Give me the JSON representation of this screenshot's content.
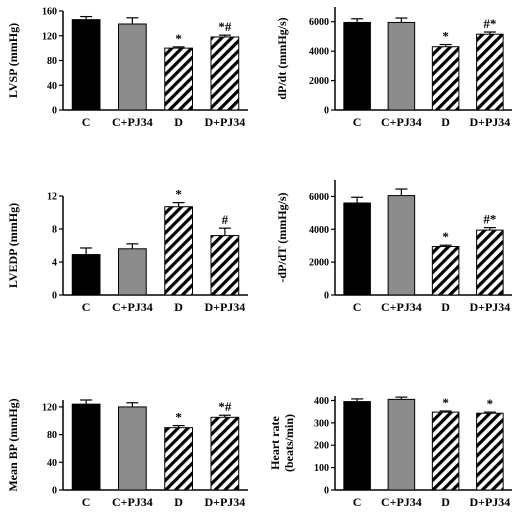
{
  "chart_data": [
    {
      "type": "bar",
      "categories": [
        "C",
        "C+PJ34",
        "D",
        "D+PJ34"
      ],
      "ylabel": "LVSP (mmHg)",
      "ylim": [
        0,
        160
      ],
      "yticks": [
        0,
        40,
        80,
        120,
        160
      ],
      "tick_labels": [
        "0",
        "40",
        "80",
        "120",
        "160"
      ],
      "values": [
        146,
        139,
        100,
        118
      ],
      "errors": [
        5,
        10,
        2,
        3
      ],
      "annotations": [
        "",
        "",
        "*",
        "*#"
      ]
    },
    {
      "type": "bar",
      "categories": [
        "C",
        "C+PJ34",
        "D",
        "D+PJ34"
      ],
      "ylabel": "dP/dt (mmHg/s)",
      "ylim": [
        0,
        7000
      ],
      "yticks": [
        0,
        2000,
        4000,
        6000
      ],
      "tick_labels": [
        "0",
        "2000",
        "4000",
        "6000"
      ],
      "values": [
        5950,
        5950,
        4300,
        5150
      ],
      "errors": [
        250,
        300,
        150,
        150
      ],
      "annotations": [
        "",
        "",
        "*",
        "#*"
      ]
    },
    {
      "type": "bar",
      "categories": [
        "C",
        "C+PJ34",
        "D",
        "D+PJ34"
      ],
      "ylabel": "LVEDP (mmHg)",
      "ylim": [
        0,
        12
      ],
      "yticks": [
        0,
        4,
        8,
        12
      ],
      "tick_labels": [
        "0",
        "4",
        "8",
        "12"
      ],
      "values": [
        4.9,
        5.6,
        10.7,
        7.2
      ],
      "errors": [
        0.8,
        0.6,
        0.5,
        0.9
      ],
      "annotations": [
        "",
        "",
        "*",
        "#"
      ]
    },
    {
      "type": "bar",
      "categories": [
        "C",
        "C+PJ34",
        "D",
        "D+PJ34"
      ],
      "ylabel": "-dP/dT (mmHg/s)",
      "ylim": [
        0,
        7000
      ],
      "yticks": [
        0,
        2000,
        4000,
        6000
      ],
      "tick_labels": [
        "0",
        "2000",
        "4000",
        "6000"
      ],
      "values": [
        5600,
        6050,
        2950,
        3950
      ],
      "errors": [
        350,
        400,
        80,
        150
      ],
      "annotations": [
        "",
        "",
        "*",
        "#*"
      ]
    },
    {
      "type": "bar",
      "categories": [
        "C",
        "C+PJ34",
        "D",
        "D+PJ34"
      ],
      "ylabel": "Mean BP (mmHg)",
      "ylim": [
        0,
        130
      ],
      "yticks": [
        0,
        40,
        80,
        120
      ],
      "tick_labels": [
        "0",
        "40",
        "80",
        "120"
      ],
      "values": [
        124,
        120,
        90,
        105
      ],
      "errors": [
        6,
        6,
        3,
        3
      ],
      "annotations": [
        "",
        "",
        "*",
        "*#"
      ]
    },
    {
      "type": "bar",
      "categories": [
        "C",
        "C+PJ34",
        "D",
        "D+PJ34"
      ],
      "ylabel": "Heart rate (beats/min)",
      "ylabel_lines": [
        "Heart rate",
        "(beats/min)"
      ],
      "ylim": [
        0,
        420
      ],
      "yticks": [
        0,
        100,
        200,
        300,
        400
      ],
      "tick_labels": [
        "0",
        "100",
        "200",
        "300",
        "400"
      ],
      "values": [
        395,
        405,
        348,
        343
      ],
      "errors": [
        12,
        10,
        5,
        5
      ],
      "annotations": [
        "",
        "",
        "*",
        "*"
      ]
    }
  ],
  "colors": {
    "C": "#000000",
    "C+PJ34": "#8c8c8c",
    "hatch": "#000000"
  }
}
